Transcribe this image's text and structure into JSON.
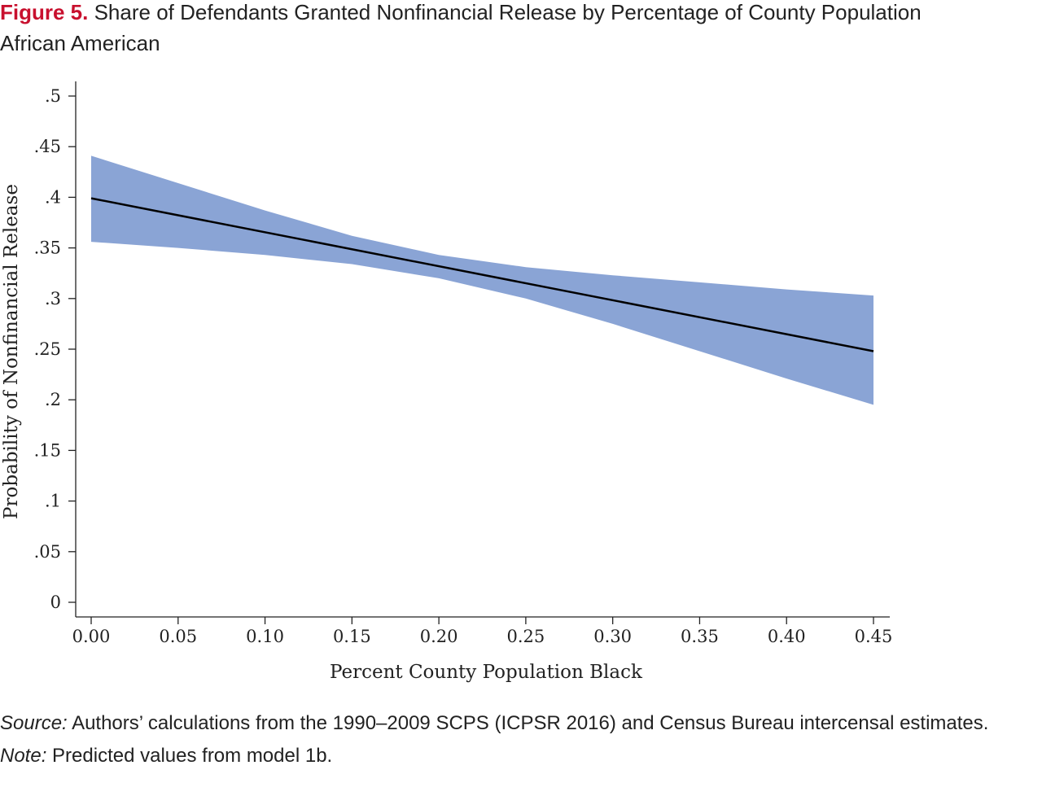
{
  "figure": {
    "label": "Figure 5.",
    "title": "Share of Defendants Granted Nonfinancial Release by Percentage of County Population African American"
  },
  "chart_data": {
    "type": "line",
    "xlabel": "Percent County Population Black",
    "ylabel": "Probability of Nonfinancial Release",
    "xlim": [
      0,
      0.45
    ],
    "ylim": [
      0,
      0.5
    ],
    "x_ticks": [
      0,
      0.05,
      0.1,
      0.15,
      0.2,
      0.25,
      0.3,
      0.35,
      0.4,
      0.45
    ],
    "x_tick_labels": [
      "0.00",
      "0.05",
      "0.10",
      "0.15",
      "0.20",
      "0.25",
      "0.30",
      "0.35",
      "0.40",
      "0.45"
    ],
    "y_ticks": [
      0,
      0.05,
      0.1,
      0.15,
      0.2,
      0.25,
      0.3,
      0.35,
      0.4,
      0.45,
      0.5
    ],
    "y_tick_labels": [
      "0",
      ".05",
      ".1",
      ".15",
      ".2",
      ".25",
      ".3",
      ".35",
      ".4",
      ".45",
      ".5"
    ],
    "grid": false,
    "series": [
      {
        "x": [
          0,
          0.45
        ],
        "y": [
          0.399,
          0.248
        ]
      }
    ],
    "confidence_band": {
      "x": [
        0,
        0.05,
        0.1,
        0.15,
        0.2,
        0.25,
        0.3,
        0.35,
        0.4,
        0.45
      ],
      "lower": [
        0.356,
        0.35,
        0.343,
        0.334,
        0.32,
        0.3,
        0.275,
        0.248,
        0.221,
        0.195
      ],
      "upper": [
        0.441,
        0.414,
        0.387,
        0.362,
        0.343,
        0.331,
        0.323,
        0.316,
        0.309,
        0.303
      ]
    },
    "colors": {
      "band": "#8aa4d5",
      "line": "#000000",
      "axis": "#222222"
    }
  },
  "notes": {
    "source_label": "Source:",
    "source_text": " Authors’ calculations from the 1990–2009 SCPS (ICPSR 2016) and Census Bureau intercensal estimates.",
    "note_label": "Note:",
    "note_text": " Predicted values from model 1b."
  }
}
